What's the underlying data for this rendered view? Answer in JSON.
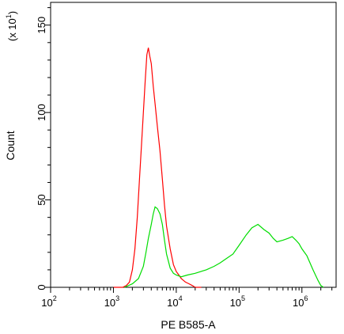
{
  "chart_data": {
    "type": "line",
    "title": "",
    "xlabel": "PE B585-A",
    "ylabel": "Count",
    "y_multiplier_label": "(x 10",
    "y_multiplier_exp": "1",
    "x_scale": "log",
    "xlim": [
      100,
      3500000
    ],
    "ylim": [
      0,
      163
    ],
    "grid": false,
    "legend": "none",
    "x_ticks": [
      {
        "base": "10",
        "exp": "2",
        "value": 100
      },
      {
        "base": "10",
        "exp": "3",
        "value": 1000
      },
      {
        "base": "10",
        "exp": "4",
        "value": 10000
      },
      {
        "base": "10",
        "exp": "5",
        "value": 100000
      },
      {
        "base": "10",
        "exp": "6",
        "value": 1000000
      }
    ],
    "y_ticks": [
      {
        "label": "0",
        "value": 0
      },
      {
        "label": "50",
        "value": 50
      },
      {
        "label": "100",
        "value": 100
      },
      {
        "label": "150",
        "value": 150
      }
    ],
    "series": [
      {
        "color": "#ff0000",
        "x": [
          1000,
          1200,
          1400,
          1600,
          1800,
          2000,
          2200,
          2400,
          2600,
          2800,
          3000,
          3200,
          3400,
          3600,
          3800,
          4000,
          4300,
          4600,
          5000,
          5500,
          6000,
          6500,
          7000,
          8000,
          9000,
          10000,
          11000,
          12000,
          13000,
          14000,
          16000,
          18000,
          20000,
          25000
        ],
        "y": [
          0,
          0,
          0,
          1,
          3,
          10,
          22,
          40,
          62,
          82,
          100,
          118,
          133,
          137,
          132,
          128,
          115,
          105,
          92,
          78,
          62,
          47,
          35,
          22,
          13,
          9,
          7,
          5,
          4,
          3,
          2,
          1,
          0,
          0
        ]
      },
      {
        "color": "#00dd00",
        "x": [
          1500,
          2000,
          2500,
          3000,
          3300,
          3600,
          4000,
          4300,
          4600,
          5000,
          5500,
          6000,
          6500,
          7000,
          8000,
          9000,
          10000,
          12000,
          15000,
          20000,
          30000,
          40000,
          50000,
          60000,
          80000,
          100000,
          130000,
          160000,
          200000,
          250000,
          300000,
          350000,
          400000,
          500000,
          600000,
          700000,
          800000,
          900000,
          1000000,
          1200000,
          1500000,
          1800000,
          2000000,
          2200000
        ],
        "y": [
          0,
          2,
          5,
          12,
          20,
          28,
          36,
          42,
          46,
          45,
          42,
          36,
          27,
          19,
          11,
          8,
          7,
          6,
          7,
          8,
          10,
          12,
          14,
          16,
          19,
          24,
          30,
          34,
          36,
          33,
          31,
          28,
          26,
          27,
          28,
          29,
          27,
          25,
          22,
          18,
          10,
          4,
          1,
          0
        ]
      }
    ]
  }
}
